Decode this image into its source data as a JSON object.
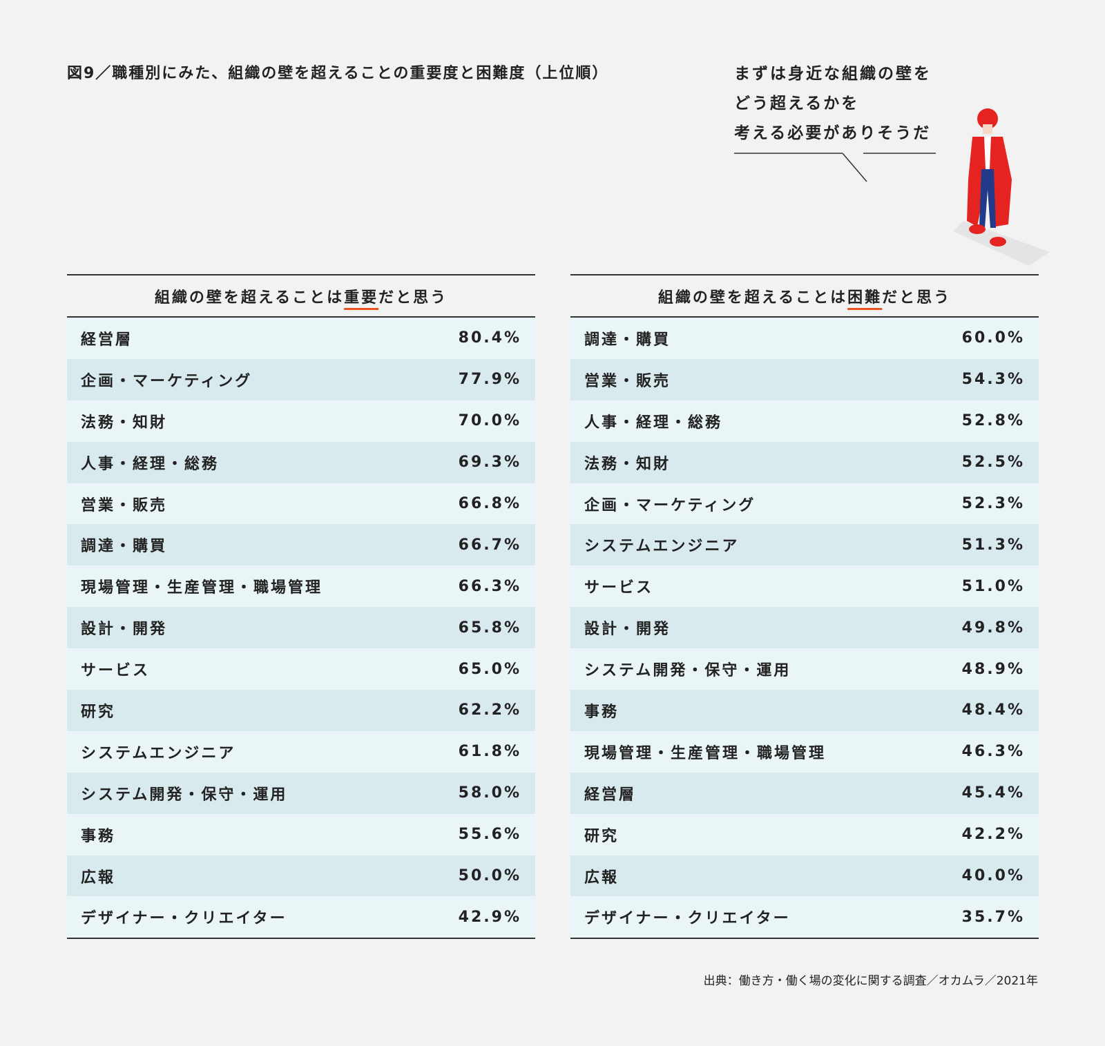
{
  "title": "図9／職種別にみた、組織の壁を超えることの重要度と困難度（上位順）",
  "speech": {
    "lines": [
      "まずは身近な組織の壁を",
      "どう超えるかを",
      "考える必要がありそうだ"
    ]
  },
  "tables": [
    {
      "header": {
        "before": "組織の壁を超えることは",
        "emphasis": "重要",
        "after": "だと思う"
      },
      "rows": [
        [
          "経営層",
          "80.4%"
        ],
        [
          "企画・マーケティング",
          "77.9%"
        ],
        [
          "法務・知財",
          "70.0%"
        ],
        [
          "人事・経理・総務",
          "69.3%"
        ],
        [
          "営業・販売",
          "66.8%"
        ],
        [
          "調達・購買",
          "66.7%"
        ],
        [
          "現場管理・生産管理・職場管理",
          "66.3%"
        ],
        [
          "設計・開発",
          "65.8%"
        ],
        [
          "サービス",
          "65.0%"
        ],
        [
          "研究",
          "62.2%"
        ],
        [
          "システムエンジニア",
          "61.8%"
        ],
        [
          "システム開発・保守・運用",
          "58.0%"
        ],
        [
          "事務",
          "55.6%"
        ],
        [
          "広報",
          "50.0%"
        ],
        [
          "デザイナー・クリエイター",
          "42.9%"
        ]
      ]
    },
    {
      "header": {
        "before": "組織の壁を超えることは",
        "emphasis": "困難",
        "after": "だと思う"
      },
      "rows": [
        [
          "調達・購買",
          "60.0%"
        ],
        [
          "営業・販売",
          "54.3%"
        ],
        [
          "人事・経理・総務",
          "52.8%"
        ],
        [
          "法務・知財",
          "52.5%"
        ],
        [
          "企画・マーケティング",
          "52.3%"
        ],
        [
          "システムエンジニア",
          "51.3%"
        ],
        [
          "サービス",
          "51.0%"
        ],
        [
          "設計・開発",
          "49.8%"
        ],
        [
          "システム開発・保守・運用",
          "48.9%"
        ],
        [
          "事務",
          "48.4%"
        ],
        [
          "現場管理・生産管理・職場管理",
          "46.3%"
        ],
        [
          "経営層",
          "45.4%"
        ],
        [
          "研究",
          "42.2%"
        ],
        [
          "広報",
          "40.0%"
        ],
        [
          "デザイナー・クリエイター",
          "35.7%"
        ]
      ]
    }
  ],
  "source": "出典：働き方・働く場の変化に関する調査／オカムラ／2021年"
}
